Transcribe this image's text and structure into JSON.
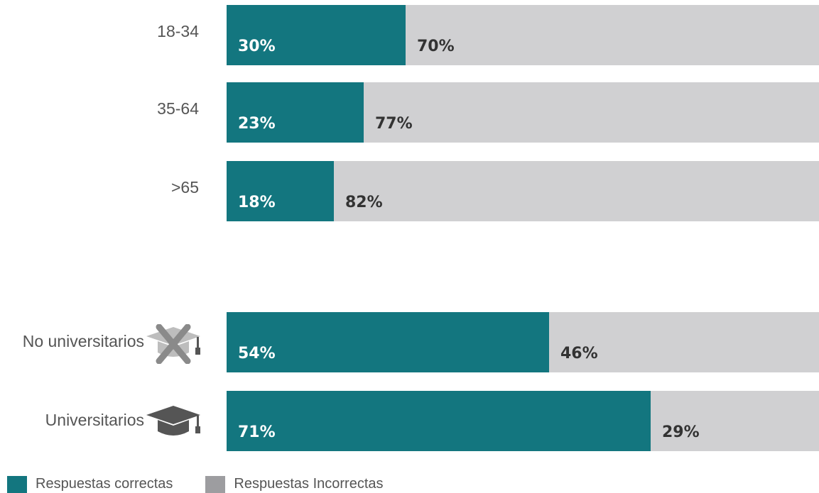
{
  "colors": {
    "correct": "#13767f",
    "incorrect": "#d0d0d2",
    "correct_text": "#ffffff",
    "incorrect_text": "#333333",
    "icon": "#555555"
  },
  "legend": {
    "correct_label": "Respuestas correctas",
    "incorrect_label": "Respuestas Incorrectas"
  },
  "chart_data": {
    "type": "bar",
    "orientation": "horizontal",
    "stacked": true,
    "xlim": [
      0,
      100
    ],
    "grid": false,
    "legend_position": "bottom-left",
    "groups": [
      {
        "categories": [
          "18-34",
          "35-64",
          ">65"
        ],
        "series": [
          {
            "name": "Respuestas correctas",
            "values": [
              30,
              23,
              18
            ],
            "labels": [
              "30%",
              "23%",
              "18%"
            ]
          },
          {
            "name": "Respuestas Incorrectas",
            "values": [
              70,
              77,
              82
            ],
            "labels": [
              "70%",
              "77%",
              "82%"
            ]
          }
        ]
      },
      {
        "categories": [
          "No universitarios",
          "Universitarios"
        ],
        "icons": [
          "crossed-graduation-cap-icon",
          "graduation-cap-icon"
        ],
        "series": [
          {
            "name": "Respuestas correctas",
            "values": [
              54,
              71
            ],
            "labels": [
              "54%",
              "71%"
            ]
          },
          {
            "name": "Respuestas Incorrectas",
            "values": [
              46,
              29
            ],
            "labels": [
              "46%",
              "29%"
            ]
          }
        ]
      }
    ]
  }
}
